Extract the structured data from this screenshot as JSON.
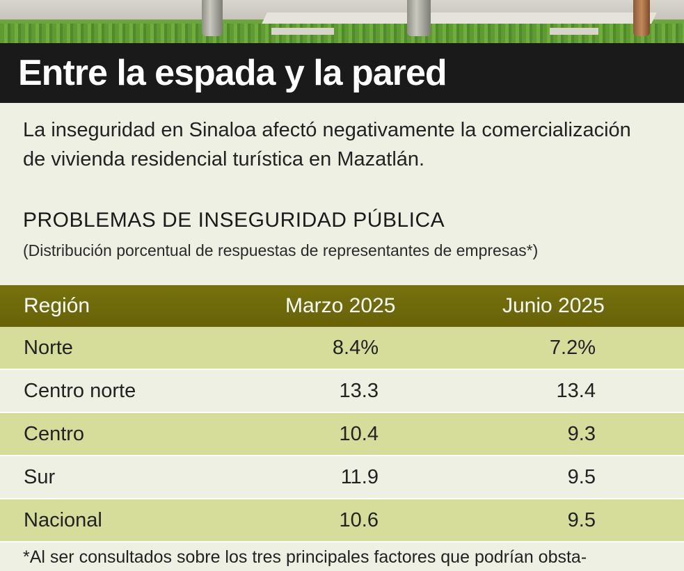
{
  "headline": "Entre la espada y la pared",
  "intro": "La inseguridad en Sinaloa afectó negativamente la comercialización de vivienda residencial turística en Mazatlán.",
  "section": {
    "title": "PROBLEMAS DE INSEGURIDAD PÚBLICA",
    "subtitle": "(Distribución porcentual de respuestas de representantes de empresas*)"
  },
  "table": {
    "headers": [
      "Región",
      "Marzo 2025",
      "Junio 2025"
    ],
    "rows": [
      [
        "Norte",
        "8.4%",
        "7.2%"
      ],
      [
        "Centro norte",
        "13.3",
        "13.4"
      ],
      [
        "Centro",
        "10.4",
        "9.3"
      ],
      [
        "Sur",
        "11.9",
        "9.5"
      ],
      [
        "Nacional",
        "10.6",
        "9.5"
      ]
    ]
  },
  "footnote": "*Al ser consultados sobre los tres principales factores que podrían obsta-",
  "colors": {
    "headline_bg": "#1a1a1a",
    "table_header_bg": "#6f6a0b",
    "row_highlight": "#d6dc9a",
    "page_bg": "#eef0e3"
  }
}
